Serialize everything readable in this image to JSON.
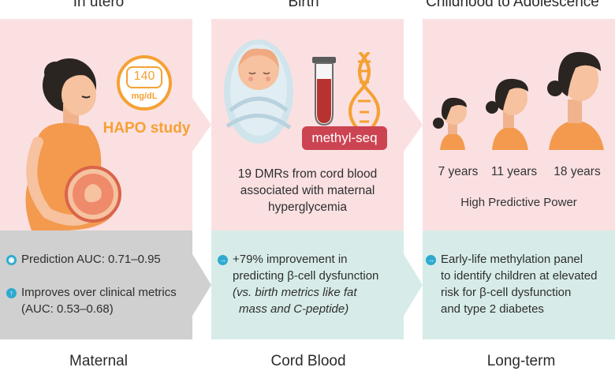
{
  "stages": {
    "in_utero": "In utero",
    "birth": "Birth",
    "childhood": "Childhood to Adolescence"
  },
  "in_utero": {
    "glucose_value": "140",
    "glucose_unit": "mg/dL",
    "study": "HAPO study"
  },
  "birth": {
    "method": "methyl-seq",
    "finding": [
      "19 DMRs from cord blood",
      "associated with maternal",
      "hyperglycemia"
    ]
  },
  "childhood": {
    "ages": [
      "7 years",
      "11 years",
      "18 years"
    ],
    "power": "High Predictive Power"
  },
  "maternal_box": {
    "bullet1": "Prediction AUC: 0.71–0.95",
    "bullet2_line1": "Improves over clinical metrics",
    "bullet2_line2": "(AUC: 0.53–0.68)"
  },
  "cord_box": {
    "line1": "+79% improvement in",
    "line2": "predicting β-cell dysfunction",
    "line3": "(vs. birth metrics like fat",
    "line4": "mass and C-peptide)"
  },
  "longterm_box": {
    "line1": "Early-life methylation panel",
    "line2": "to identify children at elevated",
    "line3": "risk for β-cell dysfunction",
    "line4": "and type 2 diabetes"
  },
  "footers": {
    "maternal": "Maternal",
    "cord": "Cord Blood",
    "longterm": "Long-term"
  },
  "colors": {
    "panel_pink": "#fbe0e2",
    "maternal_box": "#d0d0d0",
    "cord_box": "#d7ece9",
    "longterm_box": "#d7ece9",
    "accent_orange": "#f5a133",
    "bullet_teal": "#2eaad0",
    "methyl_badge": "#cc4452"
  }
}
